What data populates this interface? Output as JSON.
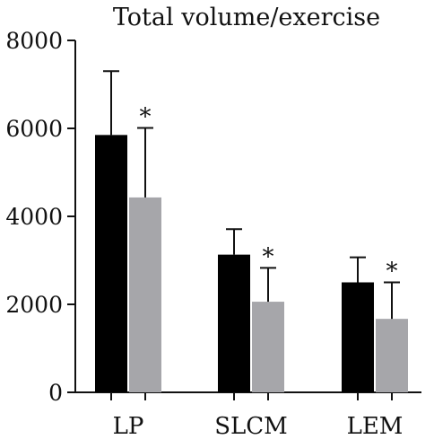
{
  "chart_data": {
    "type": "bar",
    "title": "Total volume/exercise",
    "xlabel": "",
    "ylabel": "",
    "categories": [
      "LP",
      "SLCM",
      "LEM"
    ],
    "series": [
      {
        "values": [
          5850,
          3130,
          2500
        ],
        "errors": [
          1450,
          580,
          570
        ],
        "color": "#000000"
      },
      {
        "values": [
          4430,
          2060,
          1670
        ],
        "errors": [
          1580,
          770,
          830
        ],
        "color": "#a6a6aa",
        "annotations": [
          "*",
          "*",
          "*"
        ]
      }
    ],
    "ylim": [
      0,
      8000
    ],
    "yticks": [
      0,
      2000,
      4000,
      6000,
      8000
    ],
    "grid": false,
    "legend": "none"
  }
}
